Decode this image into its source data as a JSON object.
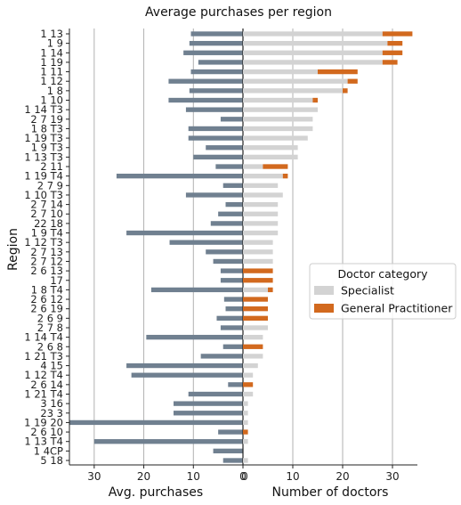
{
  "chart_data": {
    "type": "bar",
    "title": "Average purchases per region",
    "ylabel": "Region",
    "left_panel": {
      "xlabel": "Avg. purchases",
      "xlim": [
        35,
        0
      ],
      "xticks": [
        30,
        20,
        10,
        0
      ],
      "grid": true,
      "color": "#708090"
    },
    "right_panel": {
      "xlabel": "Number of doctors",
      "xlim": [
        0,
        35
      ],
      "xticks": [
        0,
        10,
        20,
        30
      ],
      "grid": true
    },
    "legend": {
      "title": "Doctor category",
      "placement": "center-right",
      "items": [
        {
          "label": "Specialist",
          "color": "#d3d3d3"
        },
        {
          "label": "General Practitioner",
          "color": "#d2691e"
        }
      ]
    },
    "categories": [
      "1 13",
      "1 9",
      "1 14",
      "1 19",
      "1 11",
      "1 12",
      "1 8",
      "1 10",
      "1 14 T3",
      "2 7 19",
      "1 8 T3",
      "1 19 T3",
      "1 9 T3",
      "1 13 T3",
      "2 11",
      "1 19 T4",
      "2 7 9",
      "1 10 T3",
      "2 7 14",
      "2 7 10",
      "22 18",
      "1 9 T4",
      "1 12 T3",
      "2 7 13",
      "2 7 12",
      "2 6 13",
      "17",
      "1 8 T4",
      "2 6 12",
      "2 6 19",
      "2 6 9",
      "2 7 8",
      "1 14 T4",
      "2 6 8",
      "1 21 T3",
      "4 15",
      "1 12 T4",
      "2 6 14",
      "1 21 T4",
      "3 16",
      "23 3",
      "1 19 20",
      "2 6 10",
      "1 13 T4",
      "1 4CP",
      "5 18"
    ],
    "avg_purchases": [
      10.5,
      10.8,
      12.0,
      9.0,
      10.5,
      15.0,
      10.8,
      15.0,
      11.5,
      4.5,
      11.0,
      11.0,
      7.5,
      10.0,
      5.5,
      25.5,
      4.0,
      11.5,
      3.5,
      5.0,
      6.5,
      23.5,
      14.8,
      7.5,
      6.0,
      4.5,
      4.5,
      18.5,
      3.8,
      3.5,
      5.3,
      4.5,
      19.5,
      4.0,
      8.5,
      23.5,
      22.5,
      3.0,
      11.0,
      14.0,
      14.0,
      35.0,
      5.0,
      30.0,
      6.0,
      4.0
    ],
    "series": [
      {
        "name": "Specialist",
        "values": [
          28,
          29,
          28,
          28,
          15,
          21,
          20,
          14,
          15,
          14,
          14,
          13,
          11,
          11,
          4,
          8,
          7,
          8,
          7,
          7,
          7,
          7,
          6,
          6,
          6,
          0,
          0,
          5,
          0,
          0,
          0,
          5,
          4,
          0,
          4,
          3,
          2,
          0,
          2,
          1,
          1,
          1,
          0,
          1,
          0,
          1
        ]
      },
      {
        "name": "General Practitioner",
        "values": [
          6,
          3,
          4,
          3,
          8,
          2,
          1,
          1,
          0,
          0,
          0,
          0,
          0,
          0,
          5,
          1,
          0,
          0,
          0,
          0,
          0,
          0,
          0,
          0,
          0,
          6,
          6,
          1,
          5,
          5,
          5,
          0,
          0,
          4,
          0,
          0,
          0,
          2,
          0,
          0,
          0,
          0,
          1,
          0,
          0,
          0
        ]
      }
    ]
  }
}
